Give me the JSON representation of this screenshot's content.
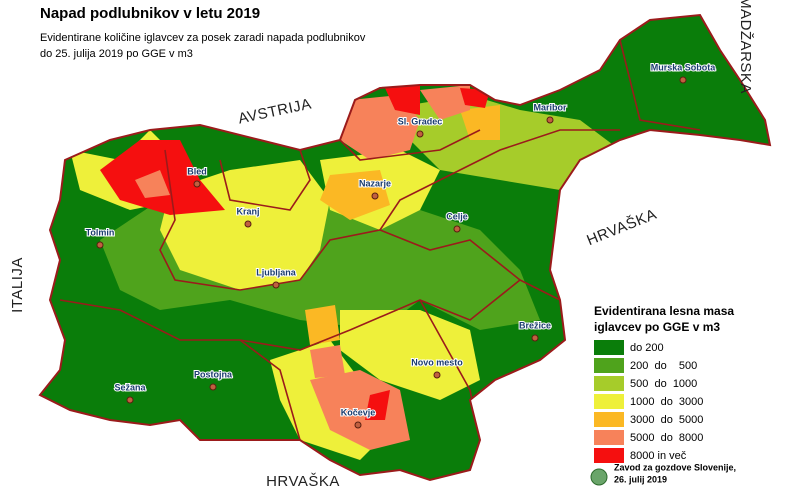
{
  "title": "Napad podlubnikov v letu 2019",
  "subtitle": [
    "Evidentirane količine iglavcev za posek zaradi napada podlubnikov",
    "do 25. julija 2019 po GGE v m3"
  ],
  "countries": [
    "MADŽARSKA",
    "AVSTRIJA",
    "ITALIJA",
    "HRVAŠKA",
    "HRVAŠKA"
  ],
  "cities": [
    "Murska Sobota",
    "Maribor",
    "Sl. Gradec",
    "Bled",
    "Nazarje",
    "Kranj",
    "Celje",
    "Tolmin",
    "Ljubljana",
    "Brežice",
    "Novo mesto",
    "Postojna",
    "Sežana",
    "Kočevje"
  ],
  "legend": {
    "title": [
      "Evidentirana lesna masa",
      "iglavcev po GGE v m3"
    ],
    "items": [
      {
        "label": "do 200",
        "color": "#0a7d0a"
      },
      {
        "label": "200  do    500",
        "color": "#4fa31c"
      },
      {
        "label": "500  do  1000",
        "color": "#a6cc2a"
      },
      {
        "label": "1000  do  3000",
        "color": "#eef03a"
      },
      {
        "label": "3000  do  5000",
        "color": "#fbb824"
      },
      {
        "label": "5000  do  8000",
        "color": "#f7825a"
      },
      {
        "label": "8000 in več",
        "color": "#f50f0f"
      }
    ]
  },
  "credit": [
    "Zavod za gozdove Slovenije,",
    "26. julij 2019"
  ]
}
